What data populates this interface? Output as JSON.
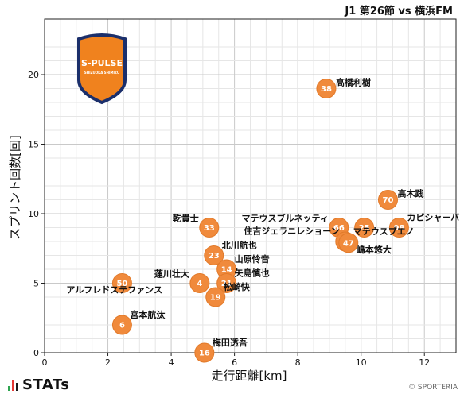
{
  "header": {
    "match_title": "J1 第26節 vs 横浜FM"
  },
  "branding": {
    "brand_name": "STATs",
    "credit": "© SPORTERIA",
    "logo_text": "S-PULSE",
    "logo_subtext": "SHIZUOKA SHIMIZU"
  },
  "colors": {
    "point": "#F08A3C",
    "point_stroke": "#E27A2A",
    "grid_major": "#c9c9c9",
    "grid_minor": "#e6e6e6",
    "logo_orange": "#F0821E",
    "logo_navy": "#1B2F6B",
    "brand_green": "#2EA44F",
    "brand_red": "#E53935"
  },
  "chart_data": {
    "type": "scatter",
    "title": "",
    "xlabel": "走行距離[km]",
    "ylabel": "スプリント回数[回]",
    "xlim": [
      0,
      13
    ],
    "ylim": [
      0,
      24
    ],
    "xticks": [
      0,
      2,
      4,
      6,
      8,
      10,
      12
    ],
    "yticks": [
      0,
      5,
      10,
      15,
      20
    ],
    "grid": true,
    "points": [
      {
        "number": "38",
        "name": "高橋利樹",
        "x": 8.9,
        "y": 19,
        "label_pos": "right"
      },
      {
        "number": "70",
        "name": "高木践",
        "x": 10.85,
        "y": 11,
        "label_pos": "right"
      },
      {
        "number": "66",
        "name": "マテウスブルネッティ",
        "x": 9.3,
        "y": 9,
        "label_pos": "top-left"
      },
      {
        "number": "25",
        "name": "住吉ジェラニレショーン",
        "x": 10.1,
        "y": 9,
        "label_pos": "left-far"
      },
      {
        "number": "98",
        "name": "カピシャーバ",
        "x": 11.2,
        "y": 9,
        "label_pos": "top-right"
      },
      {
        "number": "7",
        "name": "マテウスブエノ",
        "x": 9.5,
        "y": 8,
        "label_pos": "top-right"
      },
      {
        "number": "47",
        "name": "嶋本悠大",
        "x": 9.6,
        "y": 7.9,
        "label_pos": "bottom-right"
      },
      {
        "number": "33",
        "name": "乾貴士",
        "x": 5.2,
        "y": 9,
        "label_pos": "top-left"
      },
      {
        "number": "23",
        "name": "北川航也",
        "x": 5.35,
        "y": 7,
        "label_pos": "top-right"
      },
      {
        "number": "14",
        "name": "山原怜音",
        "x": 5.75,
        "y": 6,
        "label_pos": "top-right"
      },
      {
        "number": "21",
        "name": "矢島慎也",
        "x": 5.75,
        "y": 5,
        "label_pos": "top-right"
      },
      {
        "number": "4",
        "name": "蓮川壮大",
        "x": 4.9,
        "y": 5,
        "label_pos": "top-left"
      },
      {
        "number": "19",
        "name": "松崎快",
        "x": 5.4,
        "y": 4,
        "label_pos": "top-right"
      },
      {
        "number": "50",
        "name": "アルフレドステファンス",
        "x": 2.45,
        "y": 5,
        "label_pos": "bottom-right"
      },
      {
        "number": "6",
        "name": "宮本航汰",
        "x": 2.45,
        "y": 2,
        "label_pos": "top-right"
      },
      {
        "number": "16",
        "name": "梅田透吾",
        "x": 5.05,
        "y": 0,
        "label_pos": "top-right"
      }
    ]
  }
}
